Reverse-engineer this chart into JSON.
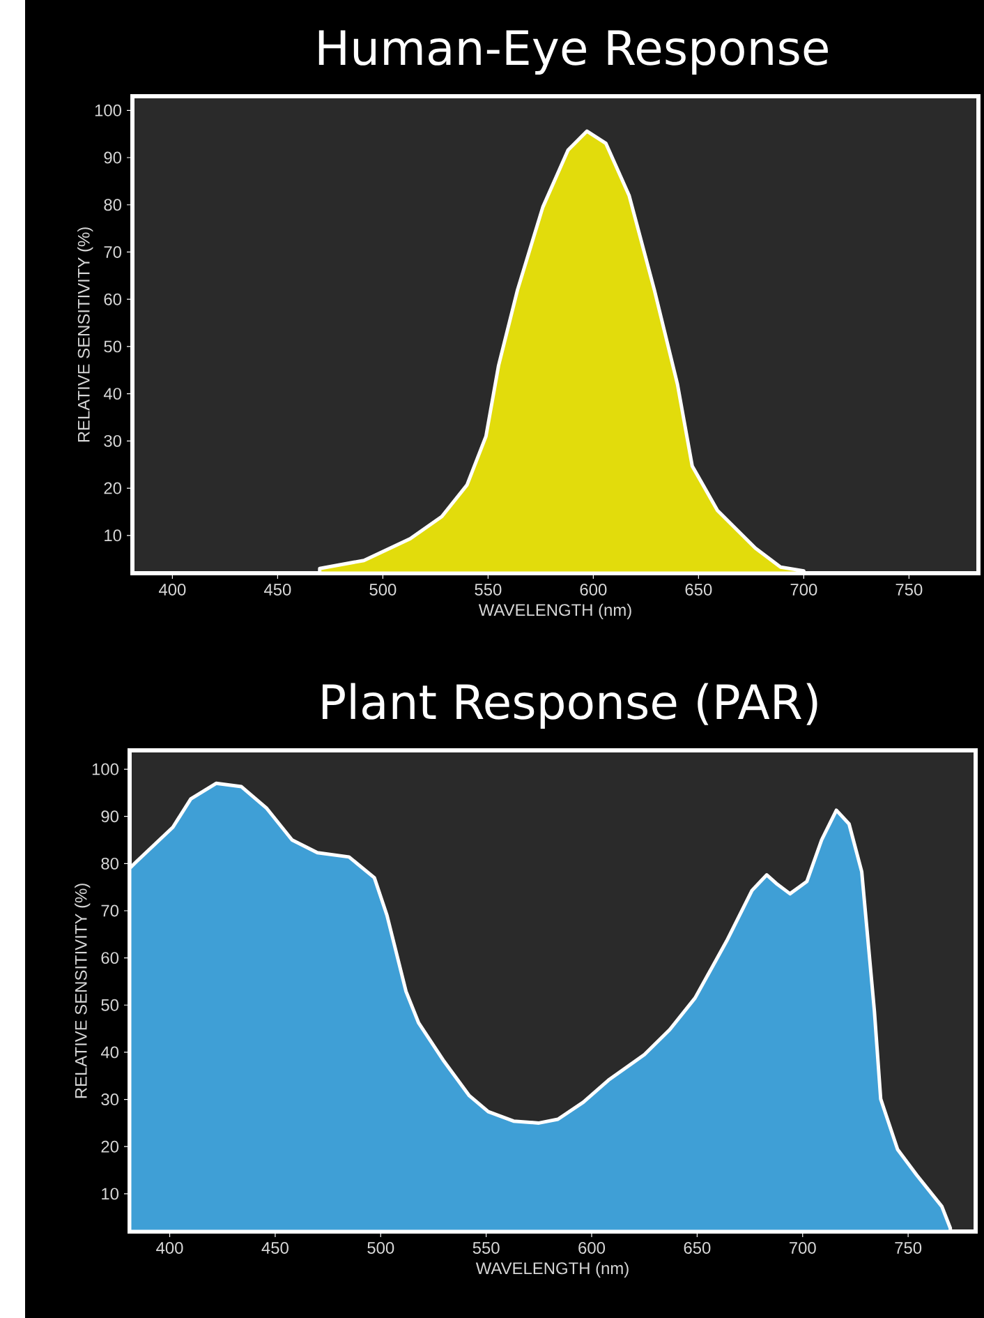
{
  "chart_data": [
    {
      "type": "area",
      "title": "Human-Eye Response",
      "xlabel": "WAVELENGTH (nm)",
      "ylabel": "RELATIVE  SENSITIVITY (%)",
      "color": "#e2dc0c",
      "x": [
        470,
        491,
        513,
        528,
        540,
        549,
        555,
        564,
        576,
        588,
        597,
        606,
        617,
        629,
        640,
        647,
        659,
        677,
        689,
        700
      ],
      "values": [
        3,
        4.7,
        9.3,
        14,
        20.7,
        31,
        46,
        62,
        79.5,
        91.6,
        95.6,
        93,
        82,
        62,
        42,
        24.7,
        15.3,
        7.3,
        3.3,
        2.5
      ],
      "xlim": [
        381,
        783
      ],
      "ylim": [
        2,
        103
      ],
      "xticks": [
        400,
        450,
        500,
        550,
        600,
        650,
        700,
        750
      ],
      "yticks": [
        10,
        20,
        30,
        40,
        50,
        60,
        70,
        80,
        90,
        100
      ]
    },
    {
      "type": "area",
      "title": "Plant Response (PAR)",
      "xlabel": "WAVELENGTH (nm)",
      "ylabel": "RELATIVE  SENSITIVITY (%)",
      "color": "#3f9fd6",
      "x": [
        381,
        384,
        401.5,
        410,
        422,
        434,
        446,
        458,
        470,
        485,
        497,
        503,
        512,
        518,
        530,
        542,
        551,
        563,
        575,
        584,
        596,
        608,
        625,
        637,
        649,
        664,
        676,
        683,
        688,
        694,
        702,
        709,
        716,
        722,
        728,
        734,
        737,
        745,
        754,
        766,
        770
      ],
      "values": [
        79,
        80.3,
        87.7,
        93.7,
        97,
        96.3,
        91.7,
        85,
        82.3,
        81.4,
        77,
        69,
        52.9,
        46.2,
        38.1,
        30.8,
        27.4,
        25.4,
        25,
        25.8,
        29.4,
        34.1,
        39.5,
        44.8,
        51.5,
        63.6,
        74.3,
        77.6,
        75.6,
        73.6,
        76.2,
        85,
        91.3,
        88.4,
        78.3,
        48.8,
        30.1,
        19.4,
        14,
        7.3,
        2.7
      ],
      "xlim": [
        381,
        782
      ],
      "ylim": [
        2,
        104
      ],
      "xticks": [
        400,
        450,
        500,
        550,
        600,
        650,
        700,
        750
      ],
      "yticks": [
        10,
        20,
        30,
        40,
        50,
        60,
        70,
        80,
        90,
        100
      ]
    }
  ]
}
